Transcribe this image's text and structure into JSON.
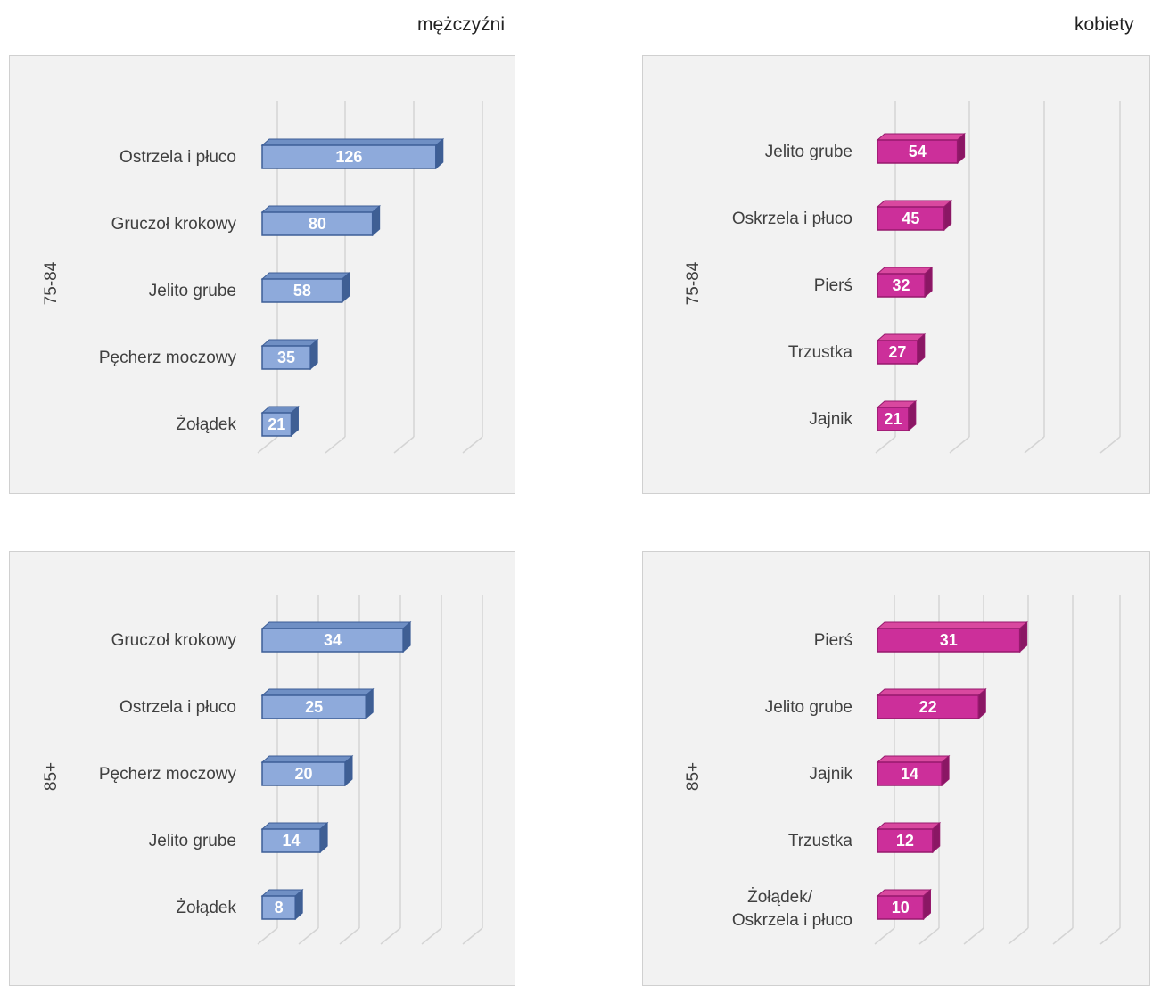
{
  "headers": {
    "men": "mężczyźni",
    "women": "kobiety"
  },
  "colors": {
    "men": {
      "front": "#8eaadb",
      "top": "#6f8fc4",
      "side": "#3f5f94",
      "edge": "#3d5e97"
    },
    "women": {
      "front": "#cc2f9a",
      "top": "#d9489f",
      "side": "#8a1764",
      "edge": "#96196d"
    }
  },
  "chart_data": [
    {
      "type": "bar",
      "group": "mężczyźni",
      "age_label": "75-84",
      "categories": [
        "Ostrzela i płuco",
        "Gruczoł krokowy",
        "Jelito grube",
        "Pęcherz moczowy",
        "Żołądek"
      ],
      "values": [
        126,
        80,
        58,
        35,
        21
      ],
      "xlim": [
        0,
        160
      ],
      "grid": true
    },
    {
      "type": "bar",
      "group": "kobiety",
      "age_label": "75-84",
      "categories": [
        "Jelito grube",
        "Oskrzela i płuco",
        "Pierś",
        "Trzustka",
        "Jajnik"
      ],
      "values": [
        54,
        45,
        32,
        27,
        21
      ],
      "xlim": [
        0,
        150
      ],
      "grid": true
    },
    {
      "type": "bar",
      "group": "mężczyźni",
      "age_label": "85+",
      "categories": [
        "Gruczoł krokowy",
        "Ostrzela i płuco",
        "Pęcherz moczowy",
        "Jelito grube",
        "Żołądek"
      ],
      "values": [
        34,
        25,
        20,
        14,
        8
      ],
      "xlim": [
        0,
        54
      ],
      "grid": true
    },
    {
      "type": "bar",
      "group": "kobiety",
      "age_label": "85+",
      "categories": [
        "Pierś",
        "Jelito grube",
        "Jajnik",
        "Trzustka",
        [
          "Żołądek/",
          "Oskrzela i płuco"
        ]
      ],
      "values": [
        31,
        22,
        14,
        12,
        10
      ],
      "xlim": [
        0,
        50
      ],
      "grid": true
    }
  ]
}
